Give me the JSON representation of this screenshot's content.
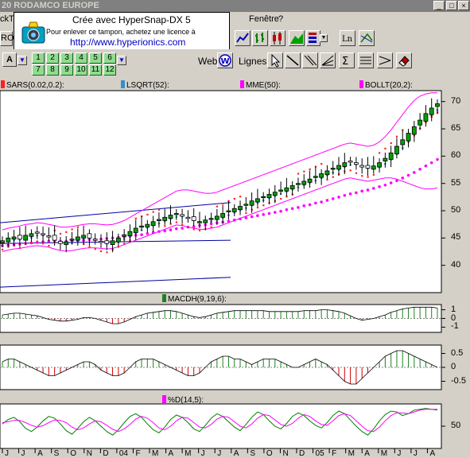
{
  "window": {
    "title": "20 RODAMCO EUROPE"
  },
  "menu": {
    "left_stub": "ckT",
    "fenetre": "Fenêtre",
    "help": "?"
  },
  "toolbar": {
    "combo_left": "RO",
    "combo_a": "A",
    "web_label": "Web",
    "lignes_label": "Lignes",
    "period_buttons": [
      "1",
      "2",
      "3",
      "4",
      "5",
      "6",
      "7",
      "8",
      "9",
      "10",
      "11",
      "12"
    ]
  },
  "stamp": {
    "line1": "Crée avec HyperSnap-DX 5",
    "line2": "Pour enlever ce tampon, achetez une licence à",
    "line3": "http://www.hyperionics.com"
  },
  "legends": {
    "sars": "SARS(0.02,0.2):",
    "lsqrt": "LSQRT(52):",
    "mme": "MME(50):",
    "bollt": "BOLLT(20,2):",
    "macdh": "MACDH(9,19,6):",
    "pctd": "%D(14,5):"
  },
  "colors": {
    "sars": "#ff2020",
    "lsqrt": "#3090d0",
    "mme": "#ff00ff",
    "bollt": "#ff00ff",
    "macdh": "#208020",
    "pctd": "#ff00ff",
    "up": "#00a000",
    "down": "#000000"
  },
  "axes": {
    "price_ticks": [
      "70",
      "65",
      "60",
      "55",
      "50",
      "45",
      "40"
    ],
    "macd_ticks": [
      "1",
      "0",
      "-1"
    ],
    "osc_ticks": [
      "0.5",
      "0",
      "-0.5"
    ],
    "stoch_ticks": [
      "50"
    ],
    "months": [
      "J",
      "J",
      "A",
      "S",
      "O",
      "N",
      "D",
      "04",
      "F",
      "M",
      "A",
      "M",
      "J",
      "J",
      "A",
      "S",
      "O",
      "N",
      "D",
      "05",
      "F",
      "M",
      "A",
      "M",
      "J",
      "J",
      "A"
    ]
  },
  "chart_data": {
    "type": "candlestick",
    "ylim": [
      35,
      72
    ],
    "close": [
      44.5,
      45.0,
      45.2,
      44.8,
      45.5,
      45.8,
      46.0,
      45.6,
      45.2,
      44.6,
      44.0,
      44.3,
      44.8,
      45.2,
      45.5,
      45.0,
      44.6,
      44.2,
      44.0,
      44.5,
      45.0,
      45.6,
      46.2,
      46.8,
      47.2,
      47.5,
      48.0,
      48.4,
      48.8,
      49.2,
      49.5,
      49.0,
      48.6,
      48.2,
      48.0,
      48.3,
      48.6,
      49.0,
      49.5,
      50.0,
      50.4,
      50.8,
      51.2,
      51.8,
      52.2,
      52.6,
      53.0,
      53.4,
      53.8,
      54.2,
      54.6,
      55.0,
      55.4,
      55.8,
      56.3,
      56.8,
      57.3,
      57.8,
      58.3,
      58.8,
      59.0,
      58.5,
      58.0,
      57.8,
      58.2,
      58.8,
      59.6,
      60.6,
      61.8,
      63.0,
      64.2,
      65.4,
      66.6,
      67.8,
      68.8,
      69.6
    ],
    "bollinger_upper": [
      46.5,
      46.8,
      47.0,
      47.2,
      47.5,
      47.6,
      47.8,
      47.7,
      47.5,
      47.3,
      47.0,
      47.0,
      47.1,
      47.3,
      47.5,
      47.6,
      47.6,
      47.5,
      47.4,
      47.5,
      47.8,
      48.2,
      48.8,
      49.4,
      50.0,
      50.6,
      51.2,
      51.8,
      52.4,
      53.0,
      53.6,
      53.8,
      53.8,
      53.6,
      53.4,
      53.2,
      53.2,
      53.4,
      53.8,
      54.2,
      54.6,
      55.0,
      55.4,
      55.8,
      56.2,
      56.6,
      57.0,
      57.4,
      57.8,
      58.2,
      58.6,
      59.0,
      59.4,
      59.8,
      60.2,
      60.6,
      61.0,
      61.4,
      61.8,
      62.2,
      62.4,
      62.2,
      62.0,
      61.8,
      62.0,
      62.6,
      63.6,
      64.8,
      66.2,
      67.6,
      69.0,
      70.2,
      71.0,
      71.4,
      71.6,
      71.6
    ],
    "bollinger_lower": [
      42.5,
      42.8,
      43.0,
      43.1,
      43.3,
      43.5,
      43.6,
      43.5,
      43.3,
      43.0,
      42.7,
      42.6,
      42.7,
      42.9,
      43.1,
      43.2,
      43.2,
      43.1,
      43.0,
      43.1,
      43.4,
      43.8,
      44.2,
      44.6,
      45.0,
      45.4,
      45.8,
      46.2,
      46.6,
      47.0,
      47.4,
      47.3,
      47.0,
      46.8,
      46.6,
      46.6,
      46.8,
      47.0,
      47.4,
      47.8,
      48.2,
      48.6,
      49.0,
      49.4,
      49.8,
      50.2,
      50.6,
      51.0,
      51.4,
      51.8,
      52.2,
      52.6,
      53.0,
      53.4,
      53.8,
      54.2,
      54.6,
      55.0,
      55.4,
      55.8,
      56.0,
      55.8,
      55.6,
      55.4,
      55.6,
      55.8,
      56.0,
      56.0,
      55.8,
      55.4,
      55.0,
      54.6,
      54.2,
      54.0,
      54.0,
      54.2
    ],
    "mme": [
      43.6,
      43.7,
      43.8,
      43.9,
      44.0,
      44.1,
      44.2,
      44.3,
      44.4,
      44.4,
      44.4,
      44.4,
      44.5,
      44.5,
      44.6,
      44.7,
      44.7,
      44.8,
      44.9,
      45.0,
      45.1,
      45.2,
      45.3,
      45.5,
      45.6,
      45.8,
      46.0,
      46.2,
      46.3,
      46.5,
      46.7,
      46.8,
      47.0,
      47.1,
      47.3,
      47.4,
      47.6,
      47.8,
      47.9,
      48.1,
      48.3,
      48.5,
      48.7,
      48.9,
      49.1,
      49.3,
      49.5,
      49.7,
      49.9,
      50.2,
      50.4,
      50.6,
      50.9,
      51.1,
      51.4,
      51.6,
      51.9,
      52.2,
      52.5,
      52.8,
      53.1,
      53.3,
      53.6,
      53.8,
      54.1,
      54.4,
      54.7,
      55.1,
      55.5,
      56.0,
      56.5,
      57.0,
      57.6,
      58.2,
      58.8,
      59.4
    ],
    "macd_hist": [
      0.4,
      0.5,
      0.6,
      0.6,
      0.5,
      0.4,
      0.3,
      0.1,
      -0.1,
      -0.2,
      -0.3,
      -0.3,
      -0.2,
      -0.1,
      0.1,
      0.1,
      0.0,
      -0.2,
      -0.4,
      -0.6,
      -0.6,
      -0.4,
      -0.1,
      0.2,
      0.4,
      0.6,
      0.7,
      0.8,
      0.9,
      0.9,
      0.8,
      0.6,
      0.4,
      0.2,
      0.1,
      0.2,
      0.4,
      0.6,
      0.7,
      0.8,
      0.9,
      0.9,
      0.9,
      0.9,
      0.9,
      0.9,
      0.8,
      0.8,
      0.8,
      0.8,
      0.8,
      0.8,
      0.9,
      0.9,
      0.9,
      1.0,
      1.0,
      0.9,
      0.8,
      0.6,
      0.3,
      0.0,
      -0.2,
      -0.1,
      0.0,
      0.2,
      0.4,
      0.7,
      0.9,
      1.1,
      1.2,
      1.3,
      1.3,
      1.3,
      1.3,
      1.2
    ],
    "osc": [
      0.2,
      0.3,
      0.3,
      0.2,
      0.1,
      0.0,
      -0.1,
      -0.2,
      -0.3,
      -0.3,
      -0.2,
      -0.1,
      0.0,
      0.1,
      0.2,
      0.2,
      0.1,
      -0.1,
      -0.2,
      -0.3,
      -0.3,
      -0.2,
      0.0,
      0.2,
      0.3,
      0.3,
      0.3,
      0.2,
      0.1,
      0.0,
      -0.1,
      -0.2,
      -0.3,
      -0.3,
      -0.2,
      0.0,
      0.2,
      0.3,
      0.4,
      0.4,
      0.3,
      0.3,
      0.2,
      0.1,
      0.2,
      0.3,
      0.3,
      0.3,
      0.2,
      0.1,
      0.0,
      0.0,
      0.1,
      0.2,
      0.3,
      0.2,
      0.1,
      -0.1,
      -0.3,
      -0.5,
      -0.6,
      -0.6,
      -0.4,
      -0.2,
      0.0,
      0.2,
      0.4,
      0.5,
      0.6,
      0.6,
      0.5,
      0.4,
      0.3,
      0.2,
      0.1,
      0.0
    ],
    "stoch_k": [
      55,
      65,
      70,
      60,
      45,
      38,
      48,
      62,
      72,
      68,
      55,
      40,
      32,
      45,
      60,
      70,
      62,
      50,
      38,
      30,
      42,
      58,
      72,
      78,
      70,
      55,
      42,
      35,
      48,
      65,
      75,
      70,
      58,
      44,
      38,
      52,
      68,
      78,
      72,
      60,
      48,
      40,
      54,
      70,
      82,
      76,
      62,
      50,
      44,
      56,
      72,
      80,
      74,
      62,
      52,
      46,
      58,
      74,
      84,
      78,
      64,
      50,
      38,
      30,
      44,
      62,
      76,
      84,
      82,
      74,
      78,
      86,
      88,
      90,
      88,
      86
    ],
    "stoch_d": [
      58,
      60,
      63,
      63,
      58,
      52,
      48,
      51,
      58,
      64,
      63,
      58,
      48,
      42,
      46,
      55,
      62,
      60,
      52,
      43,
      38,
      44,
      54,
      66,
      72,
      68,
      58,
      46,
      42,
      50,
      62,
      70,
      68,
      58,
      48,
      46,
      54,
      66,
      72,
      70,
      60,
      50,
      46,
      55,
      68,
      76,
      74,
      64,
      54,
      50,
      56,
      68,
      76,
      72,
      62,
      54,
      52,
      62,
      74,
      78,
      74,
      62,
      50,
      40,
      38,
      48,
      62,
      74,
      80,
      80,
      78,
      82,
      86,
      88,
      88,
      88
    ]
  }
}
